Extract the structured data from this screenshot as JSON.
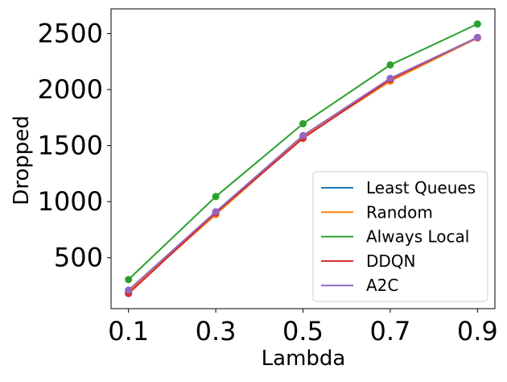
{
  "chart_data": {
    "type": "line",
    "title": "",
    "xlabel": "Lambda",
    "ylabel": "Dropped",
    "categories": [
      "0.1",
      "0.3",
      "0.5",
      "0.7",
      "0.9"
    ],
    "x": [
      0.1,
      0.3,
      0.5,
      0.7,
      0.9
    ],
    "xlim": [
      0.06,
      0.94
    ],
    "ylim": [
      45,
      2720
    ],
    "xticks": [
      0.1,
      0.3,
      0.5,
      0.7,
      0.9
    ],
    "xtick_labels": [
      "0.1",
      "0.3",
      "0.5",
      "0.7",
      "0.9"
    ],
    "yticks": [
      500,
      1000,
      1500,
      2000,
      2500
    ],
    "ytick_labels": [
      "500",
      "1000",
      "1500",
      "2000",
      "2500"
    ],
    "grid": false,
    "legend_position": "lower-right",
    "markers": true,
    "series": [
      {
        "name": "Least Queues",
        "color": "#1f77b4",
        "values": [
          190,
          895,
          1570,
          2085,
          2460
        ]
      },
      {
        "name": "Random",
        "color": "#ff7f0e",
        "values": [
          195,
          885,
          1575,
          2075,
          2460
        ]
      },
      {
        "name": "Always Local",
        "color": "#2ca02c",
        "values": [
          305,
          1045,
          1695,
          2220,
          2585
        ]
      },
      {
        "name": "DDQN",
        "color": "#d62728",
        "values": [
          180,
          900,
          1565,
          2090,
          2465
        ]
      },
      {
        "name": "A2C",
        "color": "#9467bd",
        "values": [
          210,
          910,
          1590,
          2100,
          2465
        ]
      }
    ]
  }
}
